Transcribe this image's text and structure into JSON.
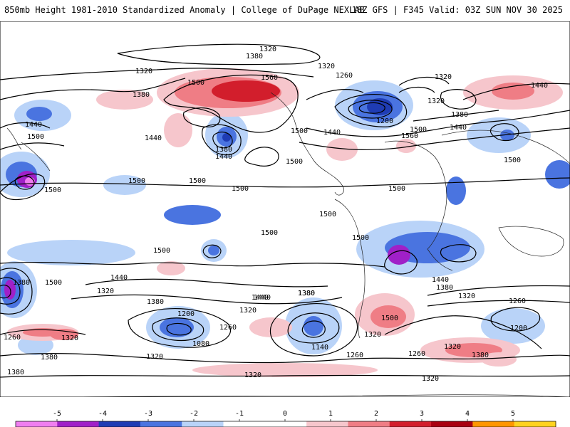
{
  "header": {
    "title": "850mb Height 1981-2010 Standardized Anomaly | College of DuPage NEXLAB",
    "run_info": "18Z GFS | F345 Valid: 03Z SUN NOV 30 2025"
  },
  "map": {
    "projection": "global cylindrical",
    "field": "850mb geopotential height (dam) with standardized anomaly shading",
    "contour_labels": [
      {
        "text": "1320"
      },
      {
        "text": "1380"
      },
      {
        "text": "1320"
      },
      {
        "text": "1380"
      },
      {
        "text": "1500"
      },
      {
        "text": "1560"
      },
      {
        "text": "1440"
      },
      {
        "text": "1500"
      },
      {
        "text": "1440"
      },
      {
        "text": "1380"
      },
      {
        "text": "1440"
      },
      {
        "text": "1500"
      },
      {
        "text": "1500"
      },
      {
        "text": "1320"
      },
      {
        "text": "1260"
      },
      {
        "text": "1320"
      },
      {
        "text": "1320"
      },
      {
        "text": "1200"
      },
      {
        "text": "1380"
      },
      {
        "text": "1500"
      },
      {
        "text": "1560"
      },
      {
        "text": "1440"
      },
      {
        "text": "1440"
      },
      {
        "text": "1500"
      },
      {
        "text": "1500"
      },
      {
        "text": "1440"
      },
      {
        "text": "1500"
      },
      {
        "text": "1500"
      },
      {
        "text": "1500"
      },
      {
        "text": "1500"
      },
      {
        "text": "1500"
      },
      {
        "text": "1500"
      },
      {
        "text": "1500"
      },
      {
        "text": "1500"
      },
      {
        "text": "1380"
      },
      {
        "text": "1440"
      },
      {
        "text": "1320"
      },
      {
        "text": "1380"
      },
      {
        "text": "1200"
      },
      {
        "text": "1260"
      },
      {
        "text": "1080"
      },
      {
        "text": "1320"
      },
      {
        "text": "1440"
      },
      {
        "text": "1380"
      },
      {
        "text": "1500"
      },
      {
        "text": "1440"
      },
      {
        "text": "1380"
      },
      {
        "text": "1320"
      },
      {
        "text": "1260"
      },
      {
        "text": "1200"
      },
      {
        "text": "1140"
      },
      {
        "text": "1260"
      },
      {
        "text": "1320"
      },
      {
        "text": "1260"
      },
      {
        "text": "1320"
      },
      {
        "text": "1380"
      },
      {
        "text": "1260"
      },
      {
        "text": "1320"
      },
      {
        "text": "1380"
      },
      {
        "text": "1320"
      },
      {
        "text": "1320"
      },
      {
        "text": "1380"
      },
      {
        "text": "1500"
      },
      {
        "text": "1440"
      },
      {
        "text": "1380"
      },
      {
        "text": "1320"
      }
    ]
  },
  "colorbar": {
    "ticks": [
      "-5",
      "-4",
      "-3",
      "-2",
      "-1",
      "0",
      "1",
      "2",
      "3",
      "4",
      "5"
    ],
    "colors": [
      "#f07ef0",
      "#a020c8",
      "#1f3cb4",
      "#4a74e0",
      "#b9d3f8",
      "#ffffff",
      "#ffffff",
      "#f6c6cc",
      "#ef7d85",
      "#d21e2c",
      "#a80010",
      "#ff9600",
      "#ffd21e"
    ]
  }
}
